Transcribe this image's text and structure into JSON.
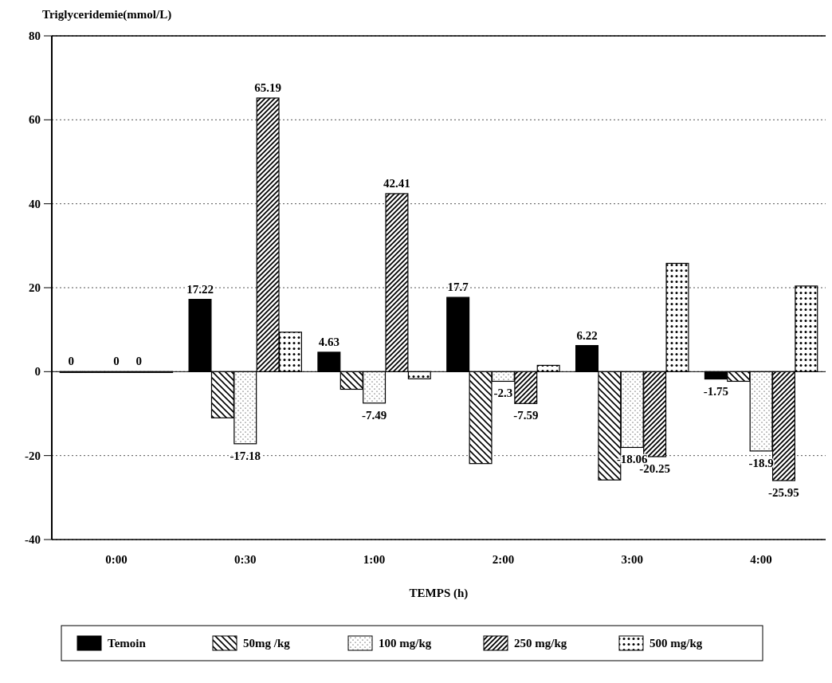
{
  "chart_data": {
    "type": "bar",
    "ylabel": "Triglyceridemie(mmol/L)",
    "xlabel": "TEMPS (h)",
    "categories": [
      "0:00",
      "0:30",
      "1:00",
      "2:00",
      "3:00",
      "4:00"
    ],
    "series": [
      {
        "name": "Temoin",
        "color": "#000000",
        "values": [
          0,
          17.22,
          4.63,
          17.7,
          6.22,
          -1.75
        ],
        "value_labels": [
          "0",
          "17.22",
          "4.63",
          "17.7",
          "6.22",
          "-1.75"
        ]
      },
      {
        "name": "50mg /kg",
        "color": "#000000",
        "values": [
          0,
          -11,
          -4.2,
          -21.9,
          -25.8,
          -2.3
        ]
      },
      {
        "name": "100 mg/kg",
        "color": "#000000",
        "values": [
          0,
          -17.18,
          -7.49,
          -2.3,
          -18.06,
          -18.9
        ],
        "value_labels": [
          "0",
          "-17.18",
          "-7.49",
          "-2.3",
          "-18.06",
          "-18.9"
        ]
      },
      {
        "name": "250 mg/kg",
        "color": "#000000",
        "values": [
          0,
          65.19,
          42.41,
          -7.59,
          -20.25,
          -25.95
        ],
        "value_labels": [
          "0",
          "65.19",
          "42.41",
          "-7.59",
          "-20.25",
          "-25.95"
        ]
      },
      {
        "name": "500 mg/kg",
        "color": "#000000",
        "values": [
          0,
          9.4,
          -1.7,
          1.5,
          25.8,
          20.4
        ]
      }
    ],
    "ylim": [
      -40,
      80
    ],
    "yticks": [
      -40,
      -20,
      0,
      20,
      40,
      60,
      80
    ],
    "grid": "y",
    "legend": "bottom"
  }
}
